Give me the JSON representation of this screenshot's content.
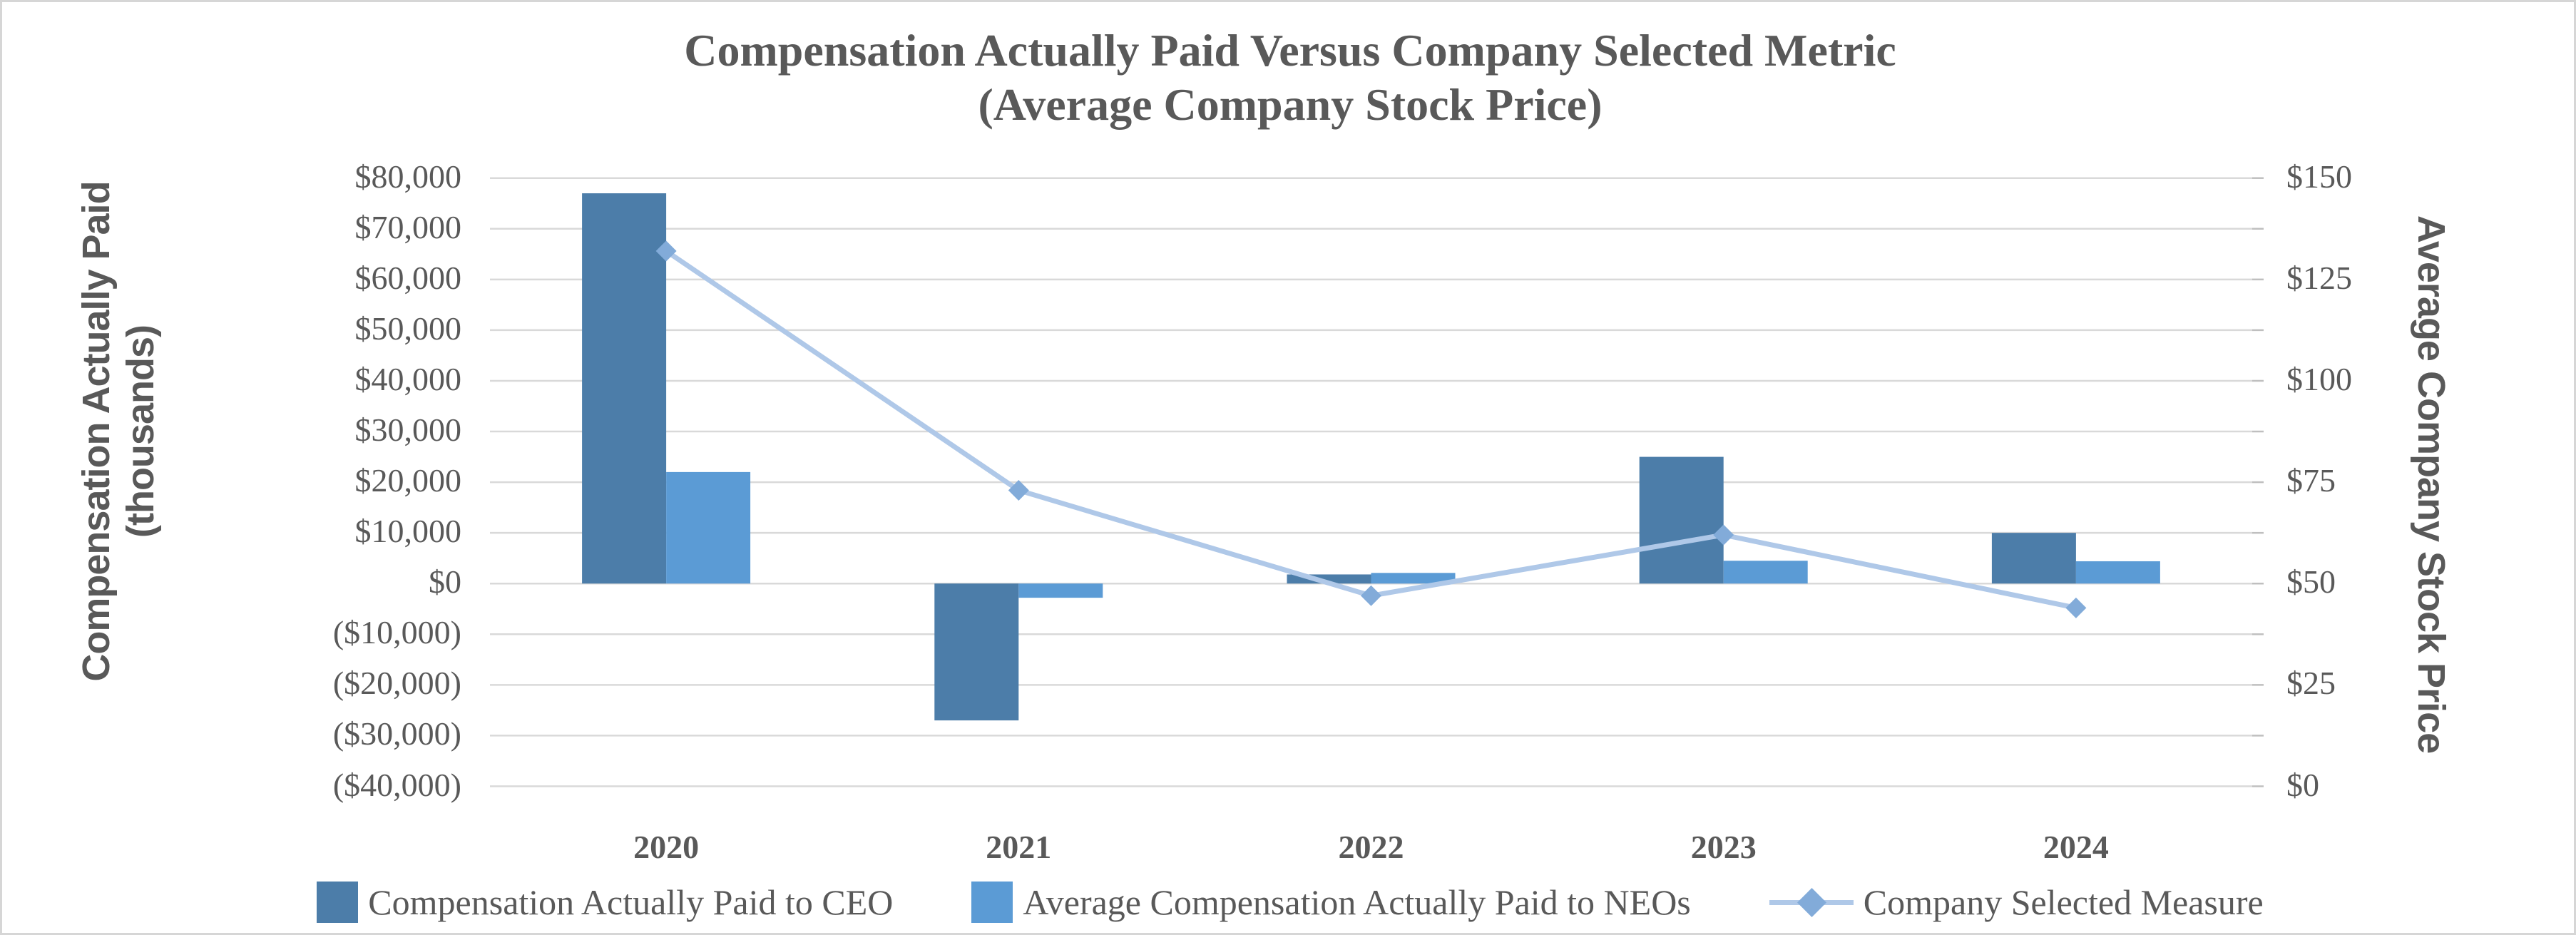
{
  "title": {
    "line1": "Compensation Actually Paid Versus Company Selected Metric",
    "line2": "(Average Company Stock Price)"
  },
  "axes": {
    "left": {
      "title_line1": "Compensation Actually Paid",
      "title_line2": "(thousands)",
      "ticks": [
        "$80,000",
        "$70,000",
        "$60,000",
        "$50,000",
        "$40,000",
        "$30,000",
        "$20,000",
        "$10,000",
        "$0",
        "($10,000)",
        "($20,000)",
        "($30,000)",
        "($40,000)"
      ]
    },
    "right": {
      "title": "Average Company Stock Price",
      "ticks": [
        "$150",
        "$125",
        "$100",
        "$75",
        "$50",
        "$25",
        "$0"
      ]
    },
    "x": {
      "categories": [
        "2020",
        "2021",
        "2022",
        "2023",
        "2024"
      ]
    }
  },
  "legend": [
    {
      "label": "Compensation Actually Paid to CEO",
      "swatch": "bar-swatch-dark-blue"
    },
    {
      "label": "Average Compensation Actually Paid to NEOs",
      "swatch": "bar-swatch-light-blue"
    },
    {
      "label": "Company Selected Measure",
      "swatch": "line-diamond-swatch"
    }
  ],
  "colors": {
    "ceo_bar": "#4C7DA9",
    "neo_bar": "#5B9BD5",
    "line": "#AFC8E8",
    "marker": "#82ABD9",
    "gridline": "#D9D9D9",
    "tick_mark": "#BFBFBF",
    "text": "#595959",
    "border": "#D6D6D6"
  },
  "chart_data": {
    "type": "combo (bar + line)",
    "title": "Compensation Actually Paid Versus Company Selected Metric (Average Company Stock Price)",
    "categories": [
      "2020",
      "2021",
      "2022",
      "2023",
      "2024"
    ],
    "series": [
      {
        "name": "Compensation Actually Paid to CEO",
        "type": "bar",
        "axis": "left",
        "values": [
          77000,
          -27000,
          1800,
          25000,
          10000
        ]
      },
      {
        "name": "Average Compensation Actually Paid to NEOs",
        "type": "bar",
        "axis": "left",
        "values": [
          22000,
          -2800,
          2100,
          4500,
          4400
        ]
      },
      {
        "name": "Company Selected Measure",
        "type": "line",
        "axis": "right",
        "values": [
          132,
          73,
          47,
          62,
          44
        ]
      }
    ],
    "left_axis": {
      "label": "Compensation Actually Paid (thousands)",
      "min": -40000,
      "max": 80000,
      "tick_step": 10000,
      "format": "$#,##0;($#,##0)"
    },
    "right_axis": {
      "label": "Average Company Stock Price",
      "min": 0,
      "max": 150,
      "label_step": 25,
      "format": "$#,##0"
    },
    "grid": true,
    "legend_position": "bottom"
  }
}
